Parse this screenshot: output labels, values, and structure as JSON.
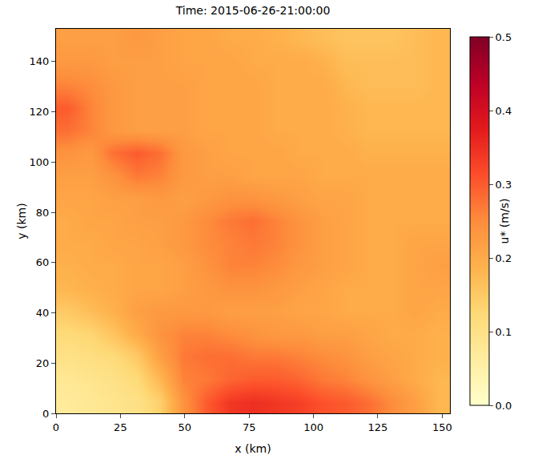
{
  "chart_data": {
    "type": "heatmap",
    "title": "Time: 2015-06-26-21:00:00",
    "x_label": "x (km)",
    "y_label": "y (km)",
    "x": [
      4.5,
      13.5,
      22.5,
      31.5,
      40.5,
      49.5,
      58.5,
      67.5,
      76.5,
      85.5,
      94.5,
      103.5,
      112.5,
      121.5,
      130.5,
      139.5,
      148.5
    ],
    "y": [
      4.5,
      13.5,
      22.5,
      31.5,
      40.5,
      49.5,
      58.5,
      67.5,
      76.5,
      85.5,
      94.5,
      103.5,
      112.5,
      121.5,
      130.5,
      139.5,
      148.5
    ],
    "z": [
      [
        0.07,
        0.08,
        0.09,
        0.1,
        0.14,
        0.24,
        0.3,
        0.34,
        0.35,
        0.34,
        0.33,
        0.31,
        0.3,
        0.28,
        0.25,
        0.22,
        0.18
      ],
      [
        0.08,
        0.09,
        0.1,
        0.12,
        0.18,
        0.26,
        0.27,
        0.29,
        0.3,
        0.3,
        0.29,
        0.27,
        0.26,
        0.24,
        0.22,
        0.2,
        0.18
      ],
      [
        0.1,
        0.11,
        0.12,
        0.15,
        0.22,
        0.27,
        0.28,
        0.28,
        0.27,
        0.27,
        0.26,
        0.25,
        0.24,
        0.22,
        0.21,
        0.2,
        0.19
      ],
      [
        0.12,
        0.13,
        0.16,
        0.2,
        0.24,
        0.26,
        0.26,
        0.25,
        0.24,
        0.23,
        0.23,
        0.22,
        0.22,
        0.21,
        0.2,
        0.2,
        0.19
      ],
      [
        0.15,
        0.17,
        0.19,
        0.22,
        0.23,
        0.23,
        0.23,
        0.22,
        0.22,
        0.22,
        0.21,
        0.21,
        0.2,
        0.2,
        0.2,
        0.21,
        0.2
      ],
      [
        0.18,
        0.19,
        0.2,
        0.21,
        0.21,
        0.22,
        0.23,
        0.24,
        0.24,
        0.23,
        0.22,
        0.21,
        0.2,
        0.2,
        0.2,
        0.21,
        0.21
      ],
      [
        0.19,
        0.2,
        0.2,
        0.21,
        0.21,
        0.22,
        0.24,
        0.26,
        0.26,
        0.25,
        0.23,
        0.22,
        0.21,
        0.2,
        0.2,
        0.21,
        0.22
      ],
      [
        0.2,
        0.2,
        0.21,
        0.21,
        0.22,
        0.23,
        0.25,
        0.26,
        0.27,
        0.26,
        0.24,
        0.22,
        0.21,
        0.2,
        0.2,
        0.21,
        0.21
      ],
      [
        0.2,
        0.21,
        0.21,
        0.22,
        0.22,
        0.23,
        0.25,
        0.27,
        0.28,
        0.26,
        0.24,
        0.22,
        0.21,
        0.2,
        0.2,
        0.2,
        0.2
      ],
      [
        0.21,
        0.21,
        0.22,
        0.22,
        0.23,
        0.22,
        0.23,
        0.24,
        0.24,
        0.23,
        0.22,
        0.21,
        0.21,
        0.2,
        0.2,
        0.2,
        0.2
      ],
      [
        0.22,
        0.22,
        0.24,
        0.27,
        0.26,
        0.23,
        0.22,
        0.22,
        0.21,
        0.21,
        0.21,
        0.2,
        0.2,
        0.2,
        0.2,
        0.2,
        0.2
      ],
      [
        0.24,
        0.23,
        0.28,
        0.3,
        0.28,
        0.23,
        0.22,
        0.21,
        0.21,
        0.21,
        0.2,
        0.2,
        0.2,
        0.19,
        0.19,
        0.19,
        0.19
      ],
      [
        0.28,
        0.26,
        0.23,
        0.22,
        0.22,
        0.22,
        0.21,
        0.21,
        0.21,
        0.2,
        0.2,
        0.2,
        0.19,
        0.18,
        0.18,
        0.18,
        0.18
      ],
      [
        0.3,
        0.26,
        0.23,
        0.22,
        0.22,
        0.22,
        0.21,
        0.21,
        0.21,
        0.2,
        0.2,
        0.2,
        0.19,
        0.18,
        0.18,
        0.18,
        0.18
      ],
      [
        0.26,
        0.25,
        0.23,
        0.22,
        0.22,
        0.22,
        0.21,
        0.21,
        0.21,
        0.2,
        0.2,
        0.2,
        0.18,
        0.17,
        0.17,
        0.17,
        0.18
      ],
      [
        0.23,
        0.23,
        0.22,
        0.22,
        0.22,
        0.21,
        0.21,
        0.21,
        0.2,
        0.2,
        0.2,
        0.19,
        0.17,
        0.17,
        0.17,
        0.17,
        0.18
      ],
      [
        0.22,
        0.22,
        0.22,
        0.23,
        0.22,
        0.21,
        0.21,
        0.2,
        0.2,
        0.19,
        0.18,
        0.17,
        0.16,
        0.16,
        0.16,
        0.17,
        0.18
      ]
    ],
    "xlim": [
      0,
      153
    ],
    "ylim": [
      0,
      153
    ],
    "xticks": [
      0,
      25,
      50,
      75,
      100,
      125,
      150
    ],
    "yticks": [
      0,
      20,
      40,
      60,
      80,
      100,
      120,
      140
    ],
    "colorbar": {
      "label": "u* (m/s)",
      "range": [
        0,
        0.5
      ],
      "ticks": [
        {
          "value": 0,
          "label": "0.0"
        },
        {
          "value": 0.1,
          "label": "0.1"
        },
        {
          "value": 0.2,
          "label": "0.2"
        },
        {
          "value": 0.3,
          "label": "0.3"
        },
        {
          "value": 0.4,
          "label": "0.4"
        },
        {
          "value": 0.5,
          "label": "0.5"
        }
      ]
    }
  }
}
